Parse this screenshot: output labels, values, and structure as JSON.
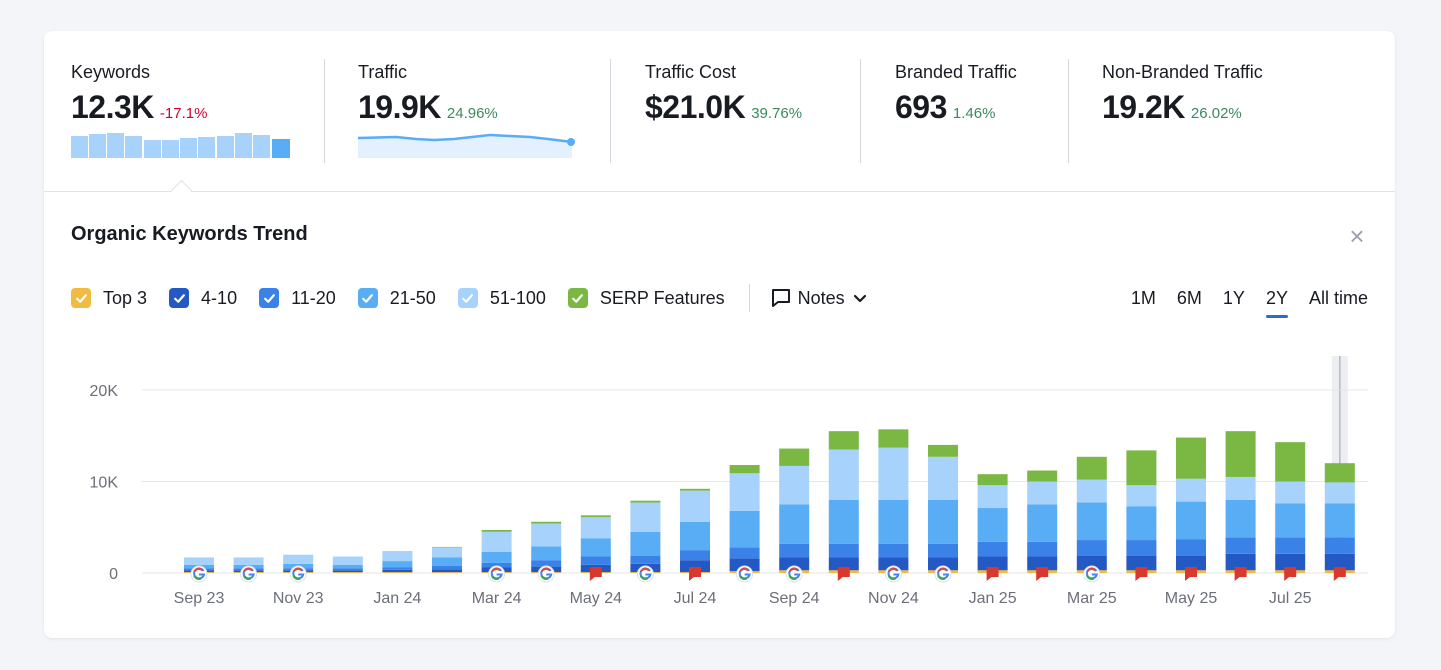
{
  "metrics": [
    {
      "label": "Keywords",
      "value": "12.3K",
      "delta": "-17.1%",
      "trend": "negative"
    },
    {
      "label": "Traffic",
      "value": "19.9K",
      "delta": "24.96%",
      "trend": "positive"
    },
    {
      "label": "Traffic Cost",
      "value": "$21.0K",
      "delta": "39.76%",
      "trend": "positive"
    },
    {
      "label": "Branded Traffic",
      "value": "693",
      "delta": "1.46%",
      "trend": "positive"
    },
    {
      "label": "Non-Branded Traffic",
      "value": "19.2K",
      "delta": "26.02%",
      "trend": "positive"
    }
  ],
  "trend": {
    "title": "Organic Keywords Trend",
    "close_icon": "×",
    "legend": [
      {
        "label": "Top 3",
        "color": "#f1bb42"
      },
      {
        "label": "4-10",
        "color": "#2458c2"
      },
      {
        "label": "11-20",
        "color": "#3b82e8"
      },
      {
        "label": "21-50",
        "color": "#58adf5"
      },
      {
        "label": "51-100",
        "color": "#a6d2fb"
      },
      {
        "label": "SERP Features",
        "color": "#7ab843"
      }
    ],
    "notes_label": "Notes",
    "ranges": [
      "1M",
      "6M",
      "1Y",
      "2Y",
      "All time"
    ],
    "active_range": "2Y"
  },
  "colors": {
    "top3": "#f1bb42",
    "r4_10": "#2458c2",
    "r11_20": "#3b82e8",
    "r21_50": "#58adf5",
    "r51_100": "#a6d2fb",
    "serp": "#7ab843",
    "google_marker": "#ffffff",
    "note_marker": "#d8382d"
  },
  "chart_data": {
    "type": "bar",
    "stacked": true,
    "y_ticks": [
      "0",
      "10K",
      "20K"
    ],
    "ylim": [
      0,
      20000
    ],
    "x_tick_labels": [
      "Sep 23",
      "Nov 23",
      "Jan 24",
      "Mar 24",
      "May 24",
      "Jul 24",
      "Sep 24",
      "Nov 24",
      "Jan 25",
      "Mar 25",
      "May 25",
      "Jul 25"
    ],
    "categories": [
      "Sep 23",
      "Oct 23",
      "Nov 23",
      "Dec 23",
      "Jan 24",
      "Feb 24",
      "Mar 24",
      "Apr 24",
      "May 24",
      "Jun 24",
      "Jul 24",
      "Aug 24",
      "Sep 24",
      "Oct 24",
      "Nov 24",
      "Dec 24",
      "Jan 25",
      "Feb 25",
      "Mar 25",
      "Apr 25",
      "May 25",
      "Jun 25",
      "Jul 25",
      "Aug 25"
    ],
    "series": [
      {
        "name": "Top 3",
        "values": [
          100,
          100,
          100,
          100,
          100,
          100,
          100,
          100,
          100,
          100,
          100,
          200,
          300,
          300,
          300,
          300,
          300,
          300,
          300,
          300,
          300,
          300,
          300,
          300
        ]
      },
      {
        "name": "4-10",
        "values": [
          200,
          200,
          200,
          200,
          250,
          300,
          500,
          600,
          800,
          900,
          1300,
          1400,
          1400,
          1400,
          1400,
          1400,
          1500,
          1500,
          1600,
          1600,
          1600,
          1800,
          1800,
          1800
        ]
      },
      {
        "name": "11-20",
        "values": [
          200,
          200,
          200,
          200,
          250,
          400,
          500,
          700,
          900,
          900,
          1100,
          1200,
          1500,
          1500,
          1500,
          1500,
          1600,
          1600,
          1700,
          1700,
          1800,
          1800,
          1800,
          1800
        ]
      },
      {
        "name": "21-50",
        "values": [
          400,
          400,
          500,
          400,
          700,
          900,
          1200,
          1500,
          2000,
          2600,
          3100,
          4000,
          4300,
          4800,
          4800,
          4800,
          3700,
          4100,
          4100,
          3700,
          4100,
          4100,
          3700,
          3700
        ]
      },
      {
        "name": "51-100",
        "values": [
          800,
          800,
          1000,
          900,
          1000,
          1100,
          2200,
          2500,
          2300,
          3200,
          3400,
          4100,
          4200,
          5500,
          5700,
          4700,
          2500,
          2500,
          2500,
          2300,
          2500,
          2500,
          2400,
          2300
        ]
      },
      {
        "name": "SERP Features",
        "values": [
          0,
          0,
          0,
          0,
          50,
          50,
          200,
          200,
          200,
          200,
          200,
          900,
          1900,
          2000,
          2000,
          1300,
          1200,
          1200,
          2500,
          3800,
          4500,
          5000,
          4300,
          2100
        ]
      }
    ],
    "markers": [
      "google",
      "google",
      "google",
      "none",
      "none",
      "none",
      "google",
      "google",
      "note",
      "google",
      "note",
      "google",
      "google",
      "note",
      "google",
      "google",
      "note",
      "note",
      "google",
      "note",
      "note",
      "note",
      "note",
      "note"
    ]
  }
}
